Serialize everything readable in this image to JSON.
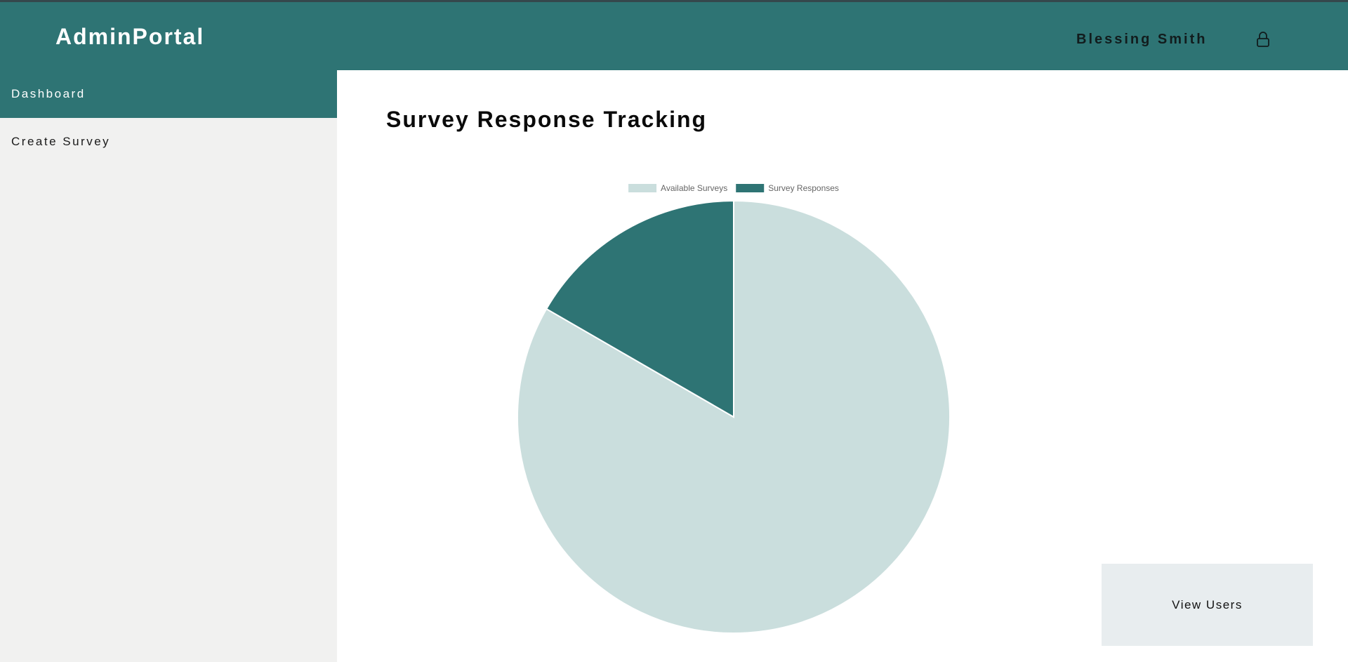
{
  "header": {
    "brand": "AdminPortal",
    "user_name": "Blessing Smith",
    "user_icon": "user-lock-icon"
  },
  "sidebar": {
    "items": [
      {
        "label": "Dashboard",
        "active": true
      },
      {
        "label": "Create Survey",
        "active": false
      }
    ]
  },
  "main": {
    "title": "Survey Response Tracking",
    "view_users_label": "View Users"
  },
  "colors": {
    "primary": "#2e7474",
    "available": "#cadedd",
    "responses": "#2e7474"
  },
  "chart_data": {
    "type": "pie",
    "title": "",
    "legend_position": "top",
    "series": [
      {
        "name": "Available Surveys",
        "value": 5,
        "color": "#cadedd"
      },
      {
        "name": "Survey Responses",
        "value": 1,
        "color": "#2e7474"
      }
    ]
  }
}
